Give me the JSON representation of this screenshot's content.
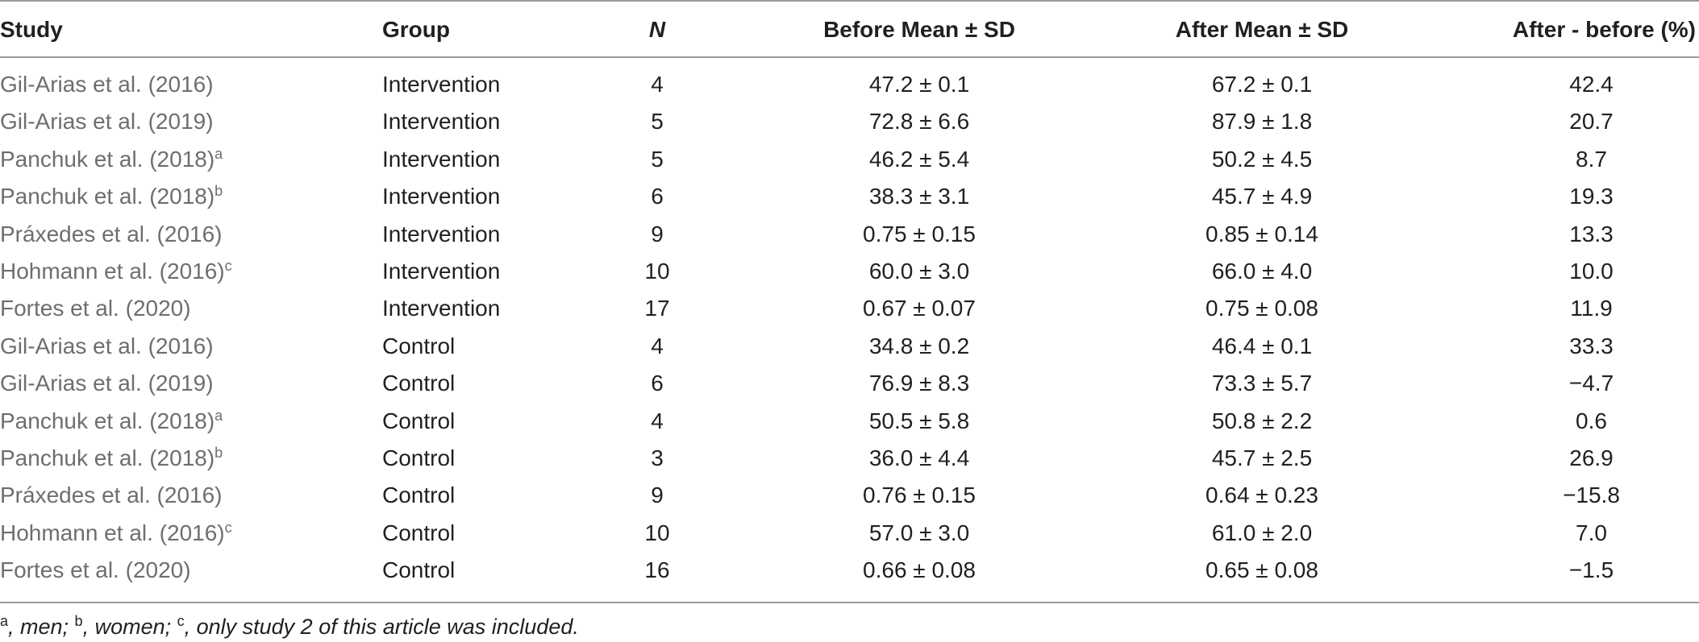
{
  "header": {
    "study": "Study",
    "group": "Group",
    "n": "N",
    "before": "Before Mean ± SD",
    "after": "After Mean ± SD",
    "diff": "After - before (%)"
  },
  "rows": [
    {
      "study": "Gil-Arias et al. (2016)",
      "sup": "",
      "group": "Intervention",
      "n": "4",
      "before": "47.2 ± 0.1",
      "after": "67.2 ± 0.1",
      "diff": "42.4"
    },
    {
      "study": "Gil-Arias et al. (2019)",
      "sup": "",
      "group": "Intervention",
      "n": "5",
      "before": "72.8 ± 6.6",
      "after": "87.9 ± 1.8",
      "diff": "20.7"
    },
    {
      "study": "Panchuk et al. (2018)",
      "sup": "a",
      "group": "Intervention",
      "n": "5",
      "before": "46.2 ± 5.4",
      "after": "50.2 ± 4.5",
      "diff": "8.7"
    },
    {
      "study": "Panchuk et al. (2018)",
      "sup": "b",
      "group": "Intervention",
      "n": "6",
      "before": "38.3 ± 3.1",
      "after": "45.7 ± 4.9",
      "diff": "19.3"
    },
    {
      "study": "Práxedes et al. (2016)",
      "sup": "",
      "group": "Intervention",
      "n": "9",
      "before": "0.75 ± 0.15",
      "after": "0.85 ± 0.14",
      "diff": "13.3"
    },
    {
      "study": "Hohmann et al. (2016)",
      "sup": "c",
      "group": "Intervention",
      "n": "10",
      "before": "60.0 ± 3.0",
      "after": "66.0 ± 4.0",
      "diff": "10.0"
    },
    {
      "study": "Fortes et al. (2020)",
      "sup": "",
      "group": "Intervention",
      "n": "17",
      "before": "0.67 ± 0.07",
      "after": "0.75 ± 0.08",
      "diff": "11.9"
    },
    {
      "study": "Gil-Arias et al. (2016)",
      "sup": "",
      "group": "Control",
      "n": "4",
      "before": "34.8 ± 0.2",
      "after": "46.4 ± 0.1",
      "diff": "33.3"
    },
    {
      "study": "Gil-Arias et al. (2019)",
      "sup": "",
      "group": "Control",
      "n": "6",
      "before": "76.9 ± 8.3",
      "after": "73.3 ± 5.7",
      "diff": "−4.7"
    },
    {
      "study": "Panchuk et al. (2018)",
      "sup": "a",
      "group": "Control",
      "n": "4",
      "before": "50.5 ± 5.8",
      "after": "50.8 ± 2.2",
      "diff": "0.6"
    },
    {
      "study": "Panchuk et al. (2018)",
      "sup": "b",
      "group": "Control",
      "n": "3",
      "before": "36.0 ± 4.4",
      "after": "45.7 ± 2.5",
      "diff": "26.9"
    },
    {
      "study": "Práxedes et al. (2016)",
      "sup": "",
      "group": "Control",
      "n": "9",
      "before": "0.76 ± 0.15",
      "after": "0.64 ± 0.23",
      "diff": "−15.8"
    },
    {
      "study": "Hohmann et al. (2016)",
      "sup": "c",
      "group": "Control",
      "n": "10",
      "before": "57.0 ± 3.0",
      "after": "61.0 ± 2.0",
      "diff": "7.0"
    },
    {
      "study": "Fortes et al. (2020)",
      "sup": "",
      "group": "Control",
      "n": "16",
      "before": "0.66 ± 0.08",
      "after": "0.65 ± 0.08",
      "diff": "−1.5"
    }
  ],
  "footnote": {
    "a_mark": "a",
    "a_text": ", men; ",
    "b_mark": "b",
    "b_text": ", women; ",
    "c_mark": "c",
    "c_text": ", only study 2 of this article was included."
  }
}
